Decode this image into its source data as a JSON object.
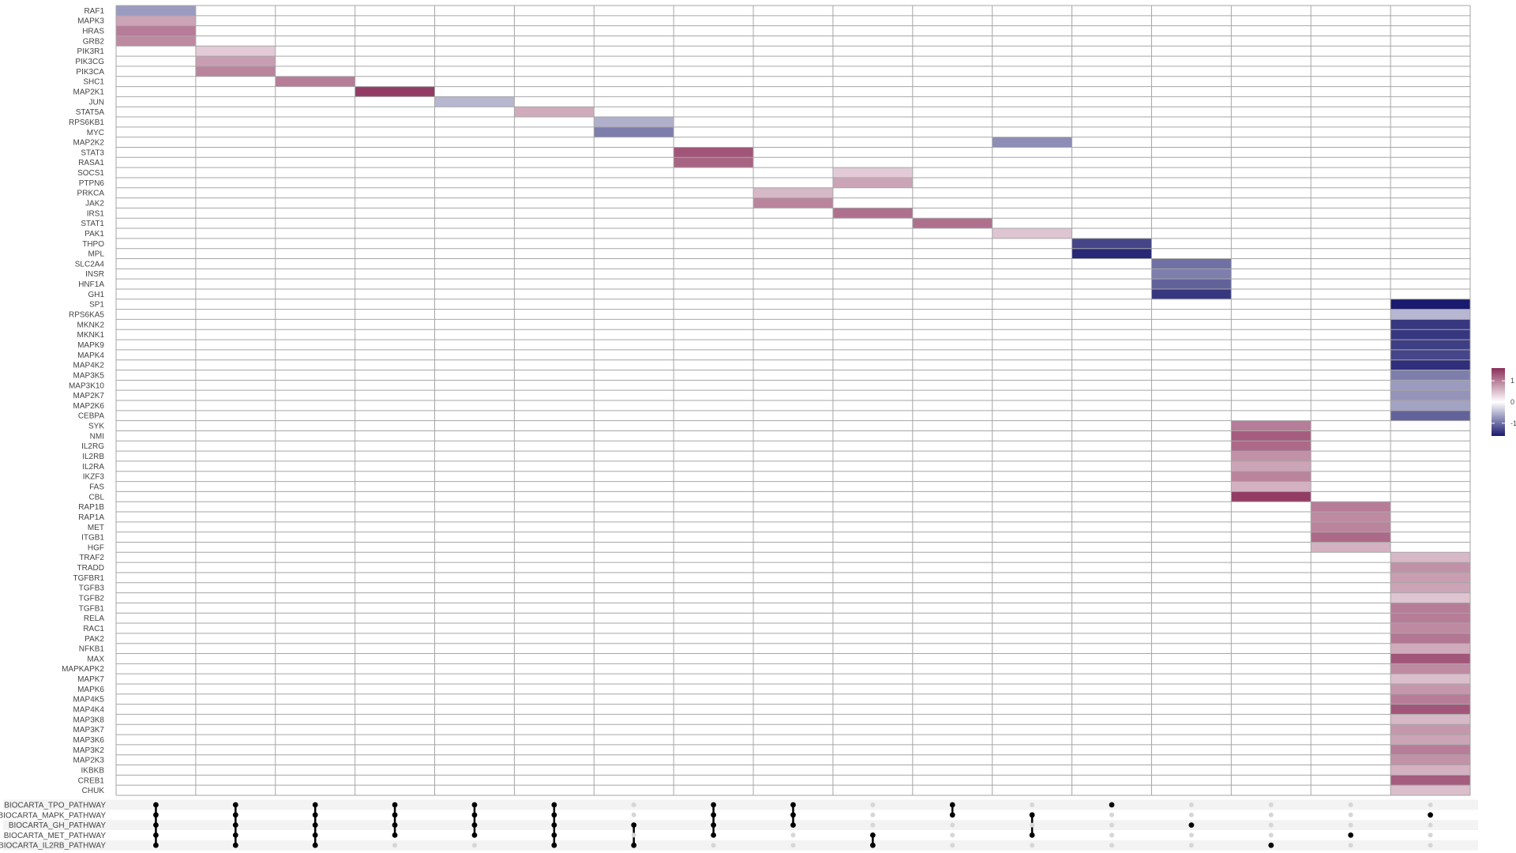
{
  "chart_data": {
    "type": "heatmap",
    "title": "",
    "color_scale": {
      "low": "#1a1a6e",
      "mid": "#ffffff",
      "high": "#8b2f5a",
      "limits": [
        -1.6,
        1.6
      ]
    },
    "legend": {
      "placement": "right",
      "ticks": [
        "1",
        "0",
        "-1"
      ],
      "tick_values": [
        1,
        0,
        -1
      ]
    },
    "grid": true,
    "n_columns": 17,
    "genes": [
      "RAF1",
      "MAPK3",
      "HRAS",
      "GRB2",
      "PIK3R1",
      "PIK3CG",
      "PIK3CA",
      "SHC1",
      "MAP2K1",
      "JUN",
      "STAT5A",
      "RPS6KB1",
      "MYC",
      "MAP2K2",
      "STAT3",
      "RASA1",
      "SOCS1",
      "PTPN6",
      "PRKCA",
      "JAK2",
      "IRS1",
      "STAT1",
      "PAK1",
      "THPO",
      "MPL",
      "SLC2A4",
      "INSR",
      "HNF1A",
      "GH1",
      "SP1",
      "RPS6KA5",
      "MKNK2",
      "MKNK1",
      "MAPK9",
      "MAPK4",
      "MAP4K2",
      "MAP3K5",
      "MAP3K10",
      "MAP2K7",
      "MAP2K6",
      "CEBPA",
      "SYK",
      "NMI",
      "IL2RG",
      "IL2RB",
      "IL2RA",
      "IKZF3",
      "FAS",
      "CBL",
      "RAP1B",
      "RAP1A",
      "MET",
      "ITGB1",
      "HGF",
      "TRAF2",
      "TRADD",
      "TGFBR1",
      "TGFB3",
      "TGFB2",
      "TGFB1",
      "RELA",
      "RAC1",
      "PAK2",
      "NFKB1",
      "MAX",
      "MAPKAPK2",
      "MAPK7",
      "MAPK6",
      "MAP4K5",
      "MAP4K4",
      "MAP3K8",
      "MAP3K7",
      "MAP3K6",
      "MAP3K2",
      "MAP2K3",
      "IKBKB",
      "CREB1",
      "CHUK"
    ],
    "values": [
      {
        "gene": "RAF1",
        "column": 1,
        "value": -0.7
      },
      {
        "gene": "MAPK3",
        "column": 1,
        "value": 0.7
      },
      {
        "gene": "HRAS",
        "column": 1,
        "value": 1.0
      },
      {
        "gene": "GRB2",
        "column": 1,
        "value": 0.9
      },
      {
        "gene": "PIK3R1",
        "column": 2,
        "value": 0.4
      },
      {
        "gene": "PIK3CG",
        "column": 2,
        "value": 0.75
      },
      {
        "gene": "PIK3CA",
        "column": 2,
        "value": 0.95
      },
      {
        "gene": "SHC1",
        "column": 3,
        "value": 1.0
      },
      {
        "gene": "MAP2K1",
        "column": 4,
        "value": 1.5
      },
      {
        "gene": "JUN",
        "column": 5,
        "value": -0.5
      },
      {
        "gene": "STAT5A",
        "column": 6,
        "value": 0.65
      },
      {
        "gene": "RPS6KB1",
        "column": 7,
        "value": -0.55
      },
      {
        "gene": "MYC",
        "column": 7,
        "value": -0.9
      },
      {
        "gene": "MAP2K2",
        "column": 12,
        "value": -0.8
      },
      {
        "gene": "STAT3",
        "column": 8,
        "value": 1.3
      },
      {
        "gene": "RASA1",
        "column": 8,
        "value": 1.2
      },
      {
        "gene": "SOCS1",
        "column": 10,
        "value": 0.4
      },
      {
        "gene": "PTPN6",
        "column": 10,
        "value": 0.7
      },
      {
        "gene": "PRKCA",
        "column": 9,
        "value": 0.55
      },
      {
        "gene": "JAK2",
        "column": 9,
        "value": 0.95
      },
      {
        "gene": "IRS1",
        "column": 10,
        "value": 1.1
      },
      {
        "gene": "STAT1",
        "column": 11,
        "value": 1.1
      },
      {
        "gene": "PAK1",
        "column": 12,
        "value": 0.45
      },
      {
        "gene": "THPO",
        "column": 13,
        "value": -1.3
      },
      {
        "gene": "MPL",
        "column": 13,
        "value": -1.5
      },
      {
        "gene": "SLC2A4",
        "column": 14,
        "value": -1.0
      },
      {
        "gene": "INSR",
        "column": 14,
        "value": -0.9
      },
      {
        "gene": "HNF1A",
        "column": 14,
        "value": -1.1
      },
      {
        "gene": "GH1",
        "column": 14,
        "value": -1.4
      },
      {
        "gene": "SP1",
        "column": 17,
        "value": -1.6
      },
      {
        "gene": "RPS6KA5",
        "column": 17,
        "value": -0.5
      },
      {
        "gene": "MKNK2",
        "column": 17,
        "value": -1.4
      },
      {
        "gene": "MKNK1",
        "column": 17,
        "value": -1.4
      },
      {
        "gene": "MAPK9",
        "column": 17,
        "value": -1.35
      },
      {
        "gene": "MAPK4",
        "column": 17,
        "value": -1.3
      },
      {
        "gene": "MAP4K2",
        "column": 17,
        "value": -1.45
      },
      {
        "gene": "MAP3K5",
        "column": 17,
        "value": -0.9
      },
      {
        "gene": "MAP3K10",
        "column": 17,
        "value": -0.7
      },
      {
        "gene": "MAP2K7",
        "column": 17,
        "value": -0.75
      },
      {
        "gene": "MAP2K6",
        "column": 17,
        "value": -0.65
      },
      {
        "gene": "CEBPA",
        "column": 17,
        "value": -1.1
      },
      {
        "gene": "SYK",
        "column": 15,
        "value": 1.0
      },
      {
        "gene": "NMI",
        "column": 15,
        "value": 1.25
      },
      {
        "gene": "IL2RG",
        "column": 15,
        "value": 1.15
      },
      {
        "gene": "IL2RB",
        "column": 15,
        "value": 0.85
      },
      {
        "gene": "IL2RA",
        "column": 15,
        "value": 0.7
      },
      {
        "gene": "IKZF3",
        "column": 15,
        "value": 0.95
      },
      {
        "gene": "FAS",
        "column": 15,
        "value": 0.6
      },
      {
        "gene": "CBL",
        "column": 15,
        "value": 1.5
      },
      {
        "gene": "RAP1B",
        "column": 16,
        "value": 1.0
      },
      {
        "gene": "RAP1A",
        "column": 16,
        "value": 0.9
      },
      {
        "gene": "MET",
        "column": 16,
        "value": 0.95
      },
      {
        "gene": "ITGB1",
        "column": 16,
        "value": 1.15
      },
      {
        "gene": "HGF",
        "column": 16,
        "value": 0.6
      },
      {
        "gene": "TRAF2",
        "column": 17,
        "value": 0.55
      },
      {
        "gene": "TRADD",
        "column": 17,
        "value": 0.85
      },
      {
        "gene": "TGFBR1",
        "column": 17,
        "value": 0.75
      },
      {
        "gene": "TGFB3",
        "column": 17,
        "value": 0.7
      },
      {
        "gene": "TGFB2",
        "column": 17,
        "value": 0.45
      },
      {
        "gene": "TGFB1",
        "column": 17,
        "value": 1.0
      },
      {
        "gene": "RELA",
        "column": 17,
        "value": 1.0
      },
      {
        "gene": "RAC1",
        "column": 17,
        "value": 0.9
      },
      {
        "gene": "PAK2",
        "column": 17,
        "value": 1.05
      },
      {
        "gene": "NFKB1",
        "column": 17,
        "value": 0.65
      },
      {
        "gene": "MAX",
        "column": 17,
        "value": 1.3
      },
      {
        "gene": "MAPKAPK2",
        "column": 17,
        "value": 0.9
      },
      {
        "gene": "MAPK7",
        "column": 17,
        "value": 0.5
      },
      {
        "gene": "MAPK6",
        "column": 17,
        "value": 0.8
      },
      {
        "gene": "MAP4K5",
        "column": 17,
        "value": 1.0
      },
      {
        "gene": "MAP4K4",
        "column": 17,
        "value": 1.3
      },
      {
        "gene": "MAP3K8",
        "column": 17,
        "value": 0.55
      },
      {
        "gene": "MAP3K7",
        "column": 17,
        "value": 0.8
      },
      {
        "gene": "MAP3K6",
        "column": 17,
        "value": 0.7
      },
      {
        "gene": "MAP3K2",
        "column": 17,
        "value": 1.0
      },
      {
        "gene": "MAP2K3",
        "column": 17,
        "value": 0.85
      },
      {
        "gene": "IKBKB",
        "column": 17,
        "value": 0.6
      },
      {
        "gene": "CREB1",
        "column": 17,
        "value": 1.25
      },
      {
        "gene": "CHUK",
        "column": 17,
        "value": 0.5
      }
    ],
    "pathways": [
      "BIOCARTA_TPO_PATHWAY",
      "BIOCARTA_MAPK_PATHWAY",
      "BIOCARTA_GH_PATHWAY",
      "BIOCARTA_MET_PATHWAY",
      "BIOCARTA_IL2RB_PATHWAY"
    ],
    "intersections": [
      [
        0,
        1,
        2,
        3,
        4
      ],
      [
        0,
        1,
        2,
        3,
        4
      ],
      [
        0,
        1,
        2,
        3,
        4
      ],
      [
        0,
        1,
        2,
        3
      ],
      [
        0,
        1,
        2,
        3
      ],
      [
        0,
        1,
        2,
        3,
        4
      ],
      [
        2,
        4
      ],
      [
        0,
        1,
        2,
        3
      ],
      [
        0,
        1,
        2
      ],
      [
        3,
        4
      ],
      [
        0,
        1
      ],
      [
        1,
        3
      ],
      [
        0
      ],
      [
        2
      ],
      [
        4
      ],
      [
        3
      ],
      [
        1
      ]
    ]
  }
}
